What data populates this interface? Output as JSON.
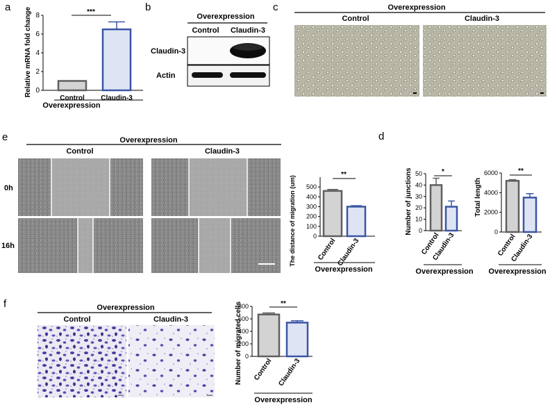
{
  "panels": {
    "a": {
      "letter": "a",
      "sig": "***",
      "group_label": "Overexpression"
    },
    "b": {
      "letter": "b",
      "header": "Overexpression",
      "lanes": [
        "Control",
        "Claudin-3"
      ],
      "rows": [
        "Claudin-3",
        "Actin"
      ]
    },
    "c": {
      "letter": "c",
      "header": "Overexpression",
      "columns": [
        "Control",
        "Claudin-3"
      ]
    },
    "d": {
      "letter": "d",
      "sig_left": "*",
      "sig_right": "**",
      "group_label_left": "Overexpression",
      "group_label_right": "Overexpression"
    },
    "e": {
      "letter": "e",
      "header": "Overexpression",
      "columns": [
        "Control",
        "Claudin-3"
      ],
      "rows": [
        "0h",
        "16h"
      ],
      "sig": "**",
      "group_label": "Overexpression"
    },
    "f": {
      "letter": "f",
      "header": "Overexpression",
      "columns": [
        "Control",
        "Claudin-3"
      ],
      "sig": "**",
      "group_label": "Overexpression"
    }
  },
  "colors": {
    "control_edge": "#5f5f5f",
    "control_fill": "#d3d3d3",
    "claudin_edge": "#3a55a4",
    "claudin_fill": "#dfe4f4",
    "stain": "#4b3c9e",
    "brightfield": "#b8b6a3",
    "scratch": "#8e8e8e"
  },
  "chart_data": [
    {
      "panel": "a",
      "type": "bar",
      "categories": [
        "Control",
        "Claudin-3"
      ],
      "values": [
        1.0,
        6.5
      ],
      "errors": [
        0,
        0.8
      ],
      "ylabel": "Relative mRNA fold change",
      "ylim": [
        0,
        8
      ],
      "yticks": [
        0,
        2,
        4,
        6,
        8
      ],
      "group": "Overexpression"
    },
    {
      "panel": "e",
      "type": "bar",
      "categories": [
        "Control",
        "Claudin-3"
      ],
      "values": [
        460,
        300
      ],
      "errors": [
        15,
        10
      ],
      "ylabel": "The distance of migration (um)",
      "ylim": [
        0,
        600
      ],
      "yticks": [
        0,
        100,
        200,
        300,
        400,
        500
      ],
      "group": "Overexpression"
    },
    {
      "panel": "d-left",
      "type": "bar",
      "categories": [
        "Control",
        "Claudin-3"
      ],
      "values": [
        40,
        21
      ],
      "errors": [
        6,
        5
      ],
      "ylabel": "Number of junctions",
      "ylim": [
        0,
        50
      ],
      "yticks": [
        0,
        10,
        20,
        30,
        40,
        50
      ],
      "group": "Overexpression"
    },
    {
      "panel": "d-right",
      "type": "bar",
      "categories": [
        "Control",
        "Claudin-3"
      ],
      "values": [
        5200,
        3500
      ],
      "errors": [
        120,
        400
      ],
      "ylabel": "Total length",
      "ylim": [
        0,
        6000
      ],
      "yticks": [
        0,
        2000,
        4000,
        6000
      ],
      "group": "Overexpression"
    },
    {
      "panel": "f",
      "type": "bar",
      "categories": [
        "Control",
        "Claudin-3"
      ],
      "values": [
        670,
        540
      ],
      "errors": [
        25,
        30
      ],
      "ylabel": "Number of migrated cells",
      "ylim": [
        0,
        800
      ],
      "yticks": [
        0,
        200,
        400,
        600,
        800
      ],
      "group": "Overexpression"
    }
  ]
}
